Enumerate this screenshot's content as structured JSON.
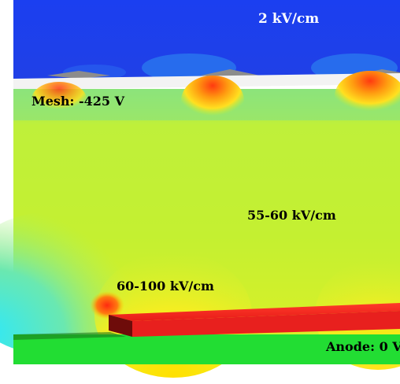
{
  "labels": {
    "drift_field": "2 kV/cm",
    "mesh": "Mesh: -425 V",
    "gap_field": "55-60 kV/cm",
    "edge_field": "60-100 kV/cm",
    "anode": "Anode: 0 V"
  },
  "colors": {
    "drift_region": "#1f3fe0",
    "mesh_strip": "#f2f2f2",
    "mesh_wire": "#8c8c8c",
    "amplification_field": "#b9ef35",
    "high_field": "#ffd400",
    "hot_spot": "#ff3a1a",
    "low_field": "#38e0f0",
    "anode_strip": "#e8201e",
    "anode_strip_side": "#7a0d0a",
    "substrate": "#22dd33"
  }
}
